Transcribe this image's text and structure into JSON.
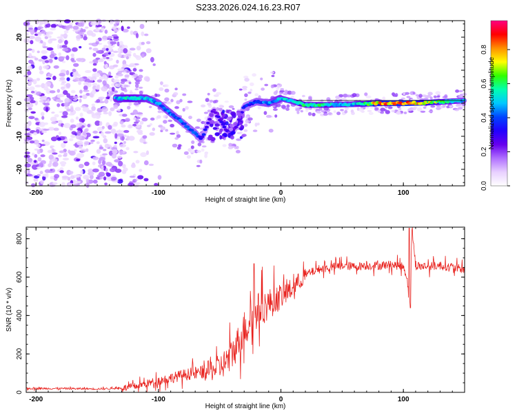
{
  "chart_data": [
    {
      "type": "heatmap",
      "title": "S233.2026.024.16.23.R07",
      "xlabel": "Height of straight line (km)",
      "ylabel": "Frequency (Hz)",
      "xlim": [
        -208,
        150
      ],
      "ylim": [
        -25,
        25
      ],
      "xticks": [
        -200,
        -100,
        0,
        100
      ],
      "xtick_labels": [
        "-200",
        "-100",
        "0",
        "100"
      ],
      "yticks": [
        -20,
        -10,
        0,
        10,
        20
      ],
      "ytick_labels": [
        "-20",
        "-10",
        "0",
        "10",
        "20"
      ],
      "colorbar": {
        "label": "Normalized spectral amplitude",
        "range": [
          0.0,
          0.97
        ],
        "ticks": [
          0.0,
          0.2,
          0.4,
          0.6,
          0.8
        ],
        "tick_labels": [
          "0.0",
          "0.2",
          "0.4",
          "0.6",
          "0.8"
        ],
        "colormap": [
          "#ffffff",
          "#e8d0ff",
          "#b070ff",
          "#6600ee",
          "#2200ff",
          "#0044ff",
          "#00c8ff",
          "#00ffb0",
          "#30ff00",
          "#ffff00",
          "#ff9000",
          "#ff0000",
          "#ff0080"
        ]
      },
      "ridge": {
        "x": [
          -135,
          -120,
          -110,
          -100,
          -90,
          -80,
          -70,
          -65,
          -55,
          -50,
          -45,
          -40,
          -35,
          -30,
          -20,
          -10,
          0,
          10,
          20,
          40,
          60,
          80,
          100,
          120,
          150
        ],
        "y": [
          1.5,
          1.5,
          1.5,
          0,
          -3,
          -6,
          -9,
          -11,
          -2,
          -5,
          -8,
          -9,
          -6,
          -1,
          0.5,
          0,
          1.5,
          0.5,
          -0.5,
          -0.5,
          -0.3,
          0,
          0,
          0.2,
          0.8
        ],
        "amplitude": [
          0.5,
          0.55,
          0.5,
          0.45,
          0.45,
          0.4,
          0.4,
          0.35,
          0.25,
          0.3,
          0.3,
          0.25,
          0.3,
          0.35,
          0.4,
          0.45,
          0.5,
          0.5,
          0.6,
          0.55,
          0.5,
          0.8,
          0.9,
          0.7,
          0.45
        ]
      }
    },
    {
      "type": "line",
      "xlabel": "Height of straight line (km)",
      "ylabel": "SNR (10 * v/v)",
      "xlim": [
        -208,
        150
      ],
      "ylim": [
        0,
        860
      ],
      "xticks": [
        -200,
        -100,
        0,
        100
      ],
      "xtick_labels": [
        "-200",
        "-100",
        "0",
        "100"
      ],
      "yticks": [
        0,
        200,
        400,
        600,
        800
      ],
      "ytick_labels": [
        "0",
        "200",
        "400",
        "600",
        "800"
      ],
      "color": "#e8211d",
      "series": [
        {
          "name": "SNR",
          "x": [
            -208,
            -180,
            -150,
            -130,
            -120,
            -110,
            -100,
            -90,
            -80,
            -70,
            -60,
            -50,
            -45,
            -40,
            -35,
            -30,
            -25,
            -20,
            -15,
            -10,
            -5,
            0,
            5,
            10,
            15,
            20,
            25,
            30,
            40,
            50,
            60,
            70,
            80,
            90,
            100,
            103,
            105,
            107,
            110,
            120,
            130,
            140,
            150
          ],
          "y": [
            20,
            20,
            18,
            22,
            30,
            45,
            60,
            75,
            90,
            100,
            110,
            130,
            160,
            200,
            260,
            330,
            380,
            420,
            440,
            460,
            480,
            500,
            520,
            545,
            580,
            610,
            625,
            640,
            650,
            660,
            655,
            660,
            660,
            665,
            655,
            600,
            450,
            850,
            660,
            655,
            660,
            650,
            640
          ]
        }
      ],
      "peaks": [
        {
          "x": -22,
          "y": 670
        },
        {
          "x": 105,
          "y": 855
        },
        {
          "x": 105.5,
          "y": 440
        }
      ]
    }
  ]
}
